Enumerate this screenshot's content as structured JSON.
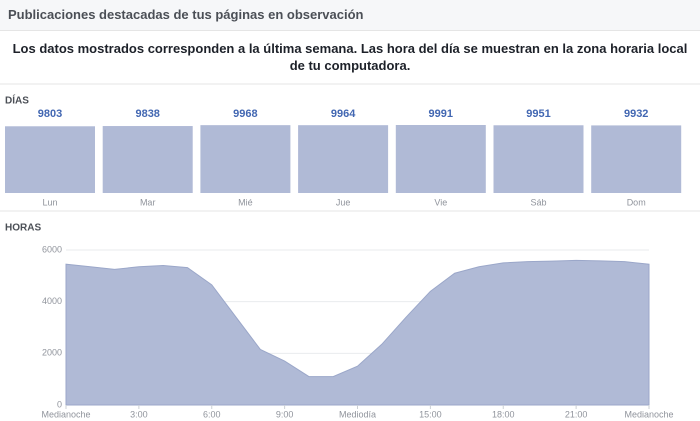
{
  "header": {
    "title": "Publicaciones destacadas de tus páginas en observación"
  },
  "notice": "Los datos mostrados corresponden a la última semana. Las hora del día se muestran en la zona horaria local de tu computadora.",
  "chart_data": [
    {
      "type": "bar",
      "title": "DÍAS",
      "color": "#b0bad6",
      "categories": [
        "Lun",
        "Mar",
        "Mié",
        "Jue",
        "Vie",
        "Sáb",
        "Dom"
      ],
      "values": [
        9803,
        9838,
        9968,
        9964,
        9991,
        9951,
        9932
      ]
    },
    {
      "type": "area",
      "title": "HORAS",
      "color": "#b0bad6",
      "grid": true,
      "x": [
        0,
        1,
        2,
        3,
        4,
        5,
        6,
        7,
        8,
        9,
        10,
        11,
        12,
        13,
        14,
        15,
        16,
        17,
        18,
        19,
        20,
        21,
        22,
        23,
        24
      ],
      "values": [
        5450,
        5350,
        5250,
        5350,
        5400,
        5320,
        4650,
        3400,
        2150,
        1700,
        1100,
        1100,
        1500,
        2350,
        3400,
        4400,
        5100,
        5350,
        5500,
        5550,
        5570,
        5600,
        5580,
        5550,
        5450
      ],
      "xlim": [
        0,
        24
      ],
      "xticks": [
        {
          "value": 0,
          "label": "Medianoche"
        },
        {
          "value": 3,
          "label": "3:00"
        },
        {
          "value": 6,
          "label": "6:00"
        },
        {
          "value": 9,
          "label": "9:00"
        },
        {
          "value": 12,
          "label": "Mediodía"
        },
        {
          "value": 15,
          "label": "15:00"
        },
        {
          "value": 18,
          "label": "18:00"
        },
        {
          "value": 21,
          "label": "21:00"
        },
        {
          "value": 24,
          "label": "Medianoche"
        }
      ],
      "ylim": [
        0,
        6000
      ],
      "yticks": [
        0,
        2000,
        4000,
        6000
      ]
    }
  ]
}
